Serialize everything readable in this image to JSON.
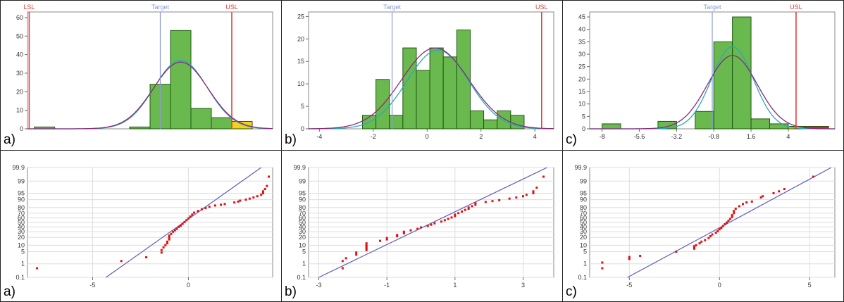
{
  "colors": {
    "bar_fill": "#6ab94e",
    "bar_stroke": "#1e5a12",
    "warn_fill": "#f2d21a",
    "out_fill": "#d92020",
    "spec_line": "#e0403a",
    "target_line": "#8a9ad2",
    "curve_a": "#2aa9b8",
    "curve_b": "#8a2a7a",
    "fit_line": "#5b5bbf",
    "point": "#e01010",
    "grid": "#dddddd"
  },
  "chart_data": [
    {
      "type": "bar",
      "panel_label": "a)",
      "xlim": [
        -8.6,
        5.8
      ],
      "ylim": [
        0,
        63
      ],
      "yticks": [
        0,
        10,
        20,
        30,
        40,
        50,
        60
      ],
      "xticks": [],
      "bins": [
        {
          "x0": -8.2,
          "x1": -7.0,
          "value": 1,
          "color": "green"
        },
        {
          "x0": -2.6,
          "x1": -1.4,
          "value": 1,
          "color": "green"
        },
        {
          "x0": -1.4,
          "x1": -0.2,
          "value": 24,
          "color": "green"
        },
        {
          "x0": -0.2,
          "x1": 1.0,
          "value": 53,
          "color": "green"
        },
        {
          "x0": 1.0,
          "x1": 2.2,
          "value": 11,
          "color": "green"
        },
        {
          "x0": 2.2,
          "x1": 3.4,
          "value": 6,
          "color": "green"
        },
        {
          "x0": 3.4,
          "x1": 4.6,
          "value": 4,
          "color": "yellow"
        }
      ],
      "curves": [
        {
          "mean": 0.4,
          "sd": 1.55,
          "peak": 37
        },
        {
          "mean": 0.4,
          "sd": 1.6,
          "peak": 36
        }
      ],
      "spec_lines": [
        {
          "label": "LSL",
          "x": -8.5,
          "kind": "spec"
        },
        {
          "label": "Target",
          "x": -0.8,
          "kind": "target"
        },
        {
          "label": "USL",
          "x": 3.4,
          "kind": "spec"
        }
      ]
    },
    {
      "type": "bar",
      "panel_label": "b)",
      "xlim": [
        -4.4,
        4.7
      ],
      "ylim": [
        0,
        26
      ],
      "yticks": [
        0,
        5,
        10,
        15,
        20,
        25
      ],
      "xticks": [
        -4,
        -2,
        0,
        2,
        4
      ],
      "bins": [
        {
          "x0": -2.4,
          "x1": -1.9,
          "value": 3,
          "color": "green"
        },
        {
          "x0": -1.9,
          "x1": -1.4,
          "value": 11,
          "color": "green"
        },
        {
          "x0": -1.4,
          "x1": -0.9,
          "value": 3,
          "color": "green"
        },
        {
          "x0": -0.9,
          "x1": -0.4,
          "value": 18,
          "color": "green"
        },
        {
          "x0": -0.4,
          "x1": 0.1,
          "value": 13,
          "color": "green"
        },
        {
          "x0": 0.1,
          "x1": 0.6,
          "value": 18,
          "color": "green"
        },
        {
          "x0": 0.6,
          "x1": 1.1,
          "value": 16,
          "color": "green"
        },
        {
          "x0": 1.1,
          "x1": 1.6,
          "value": 22,
          "color": "green"
        },
        {
          "x0": 1.6,
          "x1": 2.1,
          "value": 4,
          "color": "green"
        },
        {
          "x0": 2.1,
          "x1": 2.6,
          "value": 2,
          "color": "green"
        },
        {
          "x0": 2.6,
          "x1": 3.1,
          "value": 4,
          "color": "green"
        },
        {
          "x0": 3.1,
          "x1": 3.6,
          "value": 3,
          "color": "green"
        }
      ],
      "curves": [
        {
          "mean": 0.4,
          "sd": 1.15,
          "peak": 17.5
        },
        {
          "mean": 0.3,
          "sd": 1.25,
          "peak": 18
        }
      ],
      "spec_lines": [
        {
          "label": "Target",
          "x": -1.3,
          "kind": "target"
        },
        {
          "label": "USL",
          "x": 4.25,
          "kind": "spec"
        }
      ]
    },
    {
      "type": "bar",
      "panel_label": "c)",
      "xlim": [
        -8.8,
        7.0
      ],
      "ylim": [
        0,
        47
      ],
      "yticks": [
        0,
        5,
        10,
        15,
        20,
        25,
        30,
        35,
        40,
        45
      ],
      "xticks": [
        -8,
        -5.6,
        -3.2,
        -0.8,
        1.6,
        4
      ],
      "bins": [
        {
          "x0": -8.0,
          "x1": -6.8,
          "value": 2,
          "color": "green"
        },
        {
          "x0": -4.4,
          "x1": -3.2,
          "value": 3,
          "color": "green"
        },
        {
          "x0": -3.2,
          "x1": -2.0,
          "value": 0,
          "color": "green"
        },
        {
          "x0": -2.0,
          "x1": -0.8,
          "value": 7,
          "color": "green"
        },
        {
          "x0": -0.8,
          "x1": 0.4,
          "value": 35,
          "color": "green"
        },
        {
          "x0": 0.4,
          "x1": 1.6,
          "value": 45,
          "color": "green"
        },
        {
          "x0": 1.6,
          "x1": 2.8,
          "value": 4,
          "color": "green"
        },
        {
          "x0": 2.8,
          "x1": 4.0,
          "value": 2,
          "color": "green"
        },
        {
          "x0": 4.0,
          "x1": 5.0,
          "value": 1,
          "color": "yellow"
        },
        {
          "x0": 5.0,
          "x1": 6.6,
          "value": 1,
          "color": "red"
        }
      ],
      "curves": [
        {
          "mean": 0.4,
          "sd": 1.35,
          "peak": 33
        },
        {
          "mean": 0.4,
          "sd": 1.6,
          "peak": 29.5
        }
      ],
      "spec_lines": [
        {
          "label": "Target",
          "x": -0.9,
          "kind": "target"
        },
        {
          "label": "USL",
          "x": 4.5,
          "kind": "spec"
        }
      ]
    },
    {
      "type": "scatter",
      "panel_label": "a)",
      "xlim": [
        -8.4,
        4.4
      ],
      "xticks": [
        -5,
        0
      ],
      "yticks": [
        0.1,
        1,
        5,
        10,
        20,
        30,
        40,
        50,
        60,
        70,
        80,
        90,
        95,
        99,
        99.9
      ],
      "ylabels": [
        "0.1",
        "1",
        "5",
        "10",
        "20",
        "30",
        "40",
        "50",
        "60",
        "70",
        "80",
        "90",
        "95",
        "99",
        "99.9"
      ],
      "fit_line": {
        "x0": -4.3,
        "y0": 0.1,
        "x1": 3.8,
        "y1": 99.9
      },
      "points": [
        {
          "x": -7.9,
          "p": 0.5
        },
        {
          "x": -3.5,
          "p": 1.5
        },
        {
          "x": -2.2,
          "p": 2.5
        },
        {
          "x": -1.4,
          "p": 4.5
        },
        {
          "x": -1.4,
          "p": 6
        },
        {
          "x": -1.3,
          "p": 8
        },
        {
          "x": -1.2,
          "p": 10
        },
        {
          "x": -1.1,
          "p": 12
        },
        {
          "x": -1.1,
          "p": 14
        },
        {
          "x": -1.0,
          "p": 17
        },
        {
          "x": -1.0,
          "p": 20
        },
        {
          "x": -1.0,
          "p": 23
        },
        {
          "x": -0.9,
          "p": 26
        },
        {
          "x": -0.8,
          "p": 30
        },
        {
          "x": -0.7,
          "p": 33
        },
        {
          "x": -0.6,
          "p": 36
        },
        {
          "x": -0.5,
          "p": 40
        },
        {
          "x": -0.4,
          "p": 43
        },
        {
          "x": -0.3,
          "p": 47
        },
        {
          "x": -0.2,
          "p": 51
        },
        {
          "x": -0.1,
          "p": 55
        },
        {
          "x": 0.0,
          "p": 59
        },
        {
          "x": 0.1,
          "p": 63
        },
        {
          "x": 0.2,
          "p": 67
        },
        {
          "x": 0.3,
          "p": 71
        },
        {
          "x": 0.5,
          "p": 74
        },
        {
          "x": 0.7,
          "p": 77
        },
        {
          "x": 0.9,
          "p": 79
        },
        {
          "x": 1.1,
          "p": 81
        },
        {
          "x": 1.4,
          "p": 83
        },
        {
          "x": 1.7,
          "p": 84
        },
        {
          "x": 1.9,
          "p": 85
        },
        {
          "x": 2.4,
          "p": 87
        },
        {
          "x": 2.6,
          "p": 88
        },
        {
          "x": 2.7,
          "p": 89
        },
        {
          "x": 3.0,
          "p": 90
        },
        {
          "x": 3.2,
          "p": 91
        },
        {
          "x": 3.4,
          "p": 92
        },
        {
          "x": 3.6,
          "p": 93
        },
        {
          "x": 3.8,
          "p": 94
        },
        {
          "x": 3.9,
          "p": 95
        },
        {
          "x": 3.9,
          "p": 96
        },
        {
          "x": 4.0,
          "p": 97
        },
        {
          "x": 4.1,
          "p": 98
        },
        {
          "x": 4.2,
          "p": 99.5
        }
      ]
    },
    {
      "type": "scatter",
      "panel_label": "b)",
      "xlim": [
        -3.3,
        3.9
      ],
      "xticks": [
        -3,
        -1,
        1,
        3
      ],
      "yticks": [
        0.1,
        1,
        5,
        10,
        20,
        30,
        40,
        50,
        60,
        70,
        80,
        90,
        95,
        99,
        99.9
      ],
      "ylabels": [
        "0.1",
        "1",
        "5",
        "10",
        "20",
        "30",
        "40",
        "50",
        "60",
        "70",
        "80",
        "90",
        "95",
        "99",
        "99.9"
      ],
      "fit_line": {
        "x0": -3.0,
        "y0": 0.1,
        "x1": 3.7,
        "y1": 99.9
      },
      "points": [
        {
          "x": -2.3,
          "p": 0.5
        },
        {
          "x": -2.3,
          "p": 1.5
        },
        {
          "x": -2.2,
          "p": 2.2
        },
        {
          "x": -1.9,
          "p": 3.5
        },
        {
          "x": -1.9,
          "p": 4.5
        },
        {
          "x": -1.6,
          "p": 6
        },
        {
          "x": -1.6,
          "p": 7
        },
        {
          "x": -1.6,
          "p": 8
        },
        {
          "x": -1.6,
          "p": 9
        },
        {
          "x": -1.6,
          "p": 10
        },
        {
          "x": -1.6,
          "p": 12
        },
        {
          "x": -1.2,
          "p": 15
        },
        {
          "x": -1.0,
          "p": 17
        },
        {
          "x": -1.0,
          "p": 19
        },
        {
          "x": -0.7,
          "p": 22
        },
        {
          "x": -0.7,
          "p": 24
        },
        {
          "x": -0.5,
          "p": 27
        },
        {
          "x": -0.5,
          "p": 30
        },
        {
          "x": -0.3,
          "p": 33
        },
        {
          "x": -0.1,
          "p": 36
        },
        {
          "x": 0.0,
          "p": 39
        },
        {
          "x": 0.2,
          "p": 42
        },
        {
          "x": 0.3,
          "p": 45
        },
        {
          "x": 0.4,
          "p": 48
        },
        {
          "x": 0.6,
          "p": 52
        },
        {
          "x": 0.7,
          "p": 55
        },
        {
          "x": 0.8,
          "p": 58
        },
        {
          "x": 0.9,
          "p": 61
        },
        {
          "x": 1.0,
          "p": 64
        },
        {
          "x": 1.0,
          "p": 67
        },
        {
          "x": 1.1,
          "p": 70
        },
        {
          "x": 1.2,
          "p": 73
        },
        {
          "x": 1.3,
          "p": 76
        },
        {
          "x": 1.4,
          "p": 78
        },
        {
          "x": 1.4,
          "p": 80
        },
        {
          "x": 1.5,
          "p": 82
        },
        {
          "x": 1.6,
          "p": 84
        },
        {
          "x": 1.6,
          "p": 86
        },
        {
          "x": 1.9,
          "p": 87.5
        },
        {
          "x": 2.1,
          "p": 88.5
        },
        {
          "x": 2.3,
          "p": 89.5
        },
        {
          "x": 2.6,
          "p": 91
        },
        {
          "x": 2.8,
          "p": 92
        },
        {
          "x": 3.0,
          "p": 93
        },
        {
          "x": 3.1,
          "p": 94
        },
        {
          "x": 3.3,
          "p": 95
        },
        {
          "x": 3.3,
          "p": 96
        },
        {
          "x": 3.4,
          "p": 97.5
        },
        {
          "x": 3.6,
          "p": 99.5
        }
      ]
    },
    {
      "type": "scatter",
      "panel_label": "c)",
      "xlim": [
        -7.2,
        6.4
      ],
      "xticks": [
        -5,
        0,
        5
      ],
      "yticks": [
        0.1,
        1,
        5,
        10,
        20,
        30,
        40,
        50,
        60,
        70,
        80,
        90,
        95,
        99,
        99.9
      ],
      "ylabels": [
        "0.1",
        "1",
        "5",
        "10",
        "20",
        "30",
        "40",
        "50",
        "60",
        "70",
        "80",
        "90",
        "95",
        "99",
        "99.9"
      ],
      "fit_line": {
        "x0": -5.1,
        "y0": 0.1,
        "x1": 6.2,
        "y1": 99.9
      },
      "points": [
        {
          "x": -6.5,
          "p": 0.5
        },
        {
          "x": -6.5,
          "p": 1.2
        },
        {
          "x": -5.0,
          "p": 2
        },
        {
          "x": -5.0,
          "p": 2.6
        },
        {
          "x": -4.4,
          "p": 3
        },
        {
          "x": -2.4,
          "p": 5
        },
        {
          "x": -1.4,
          "p": 7
        },
        {
          "x": -1.4,
          "p": 8
        },
        {
          "x": -1.4,
          "p": 9
        },
        {
          "x": -1.3,
          "p": 10
        },
        {
          "x": -1.1,
          "p": 12
        },
        {
          "x": -1.0,
          "p": 14
        },
        {
          "x": -0.8,
          "p": 16
        },
        {
          "x": -0.6,
          "p": 19
        },
        {
          "x": -0.5,
          "p": 22
        },
        {
          "x": -0.4,
          "p": 25
        },
        {
          "x": -0.2,
          "p": 28
        },
        {
          "x": -0.1,
          "p": 31
        },
        {
          "x": 0.0,
          "p": 35
        },
        {
          "x": 0.1,
          "p": 38
        },
        {
          "x": 0.2,
          "p": 42
        },
        {
          "x": 0.3,
          "p": 46
        },
        {
          "x": 0.4,
          "p": 50
        },
        {
          "x": 0.5,
          "p": 54
        },
        {
          "x": 0.6,
          "p": 58
        },
        {
          "x": 0.7,
          "p": 62
        },
        {
          "x": 0.7,
          "p": 66
        },
        {
          "x": 0.8,
          "p": 70
        },
        {
          "x": 0.8,
          "p": 74
        },
        {
          "x": 0.9,
          "p": 78
        },
        {
          "x": 1.1,
          "p": 82
        },
        {
          "x": 1.3,
          "p": 85
        },
        {
          "x": 1.5,
          "p": 87
        },
        {
          "x": 1.8,
          "p": 88
        },
        {
          "x": 2.3,
          "p": 92
        },
        {
          "x": 2.4,
          "p": 93
        },
        {
          "x": 3.0,
          "p": 95
        },
        {
          "x": 3.3,
          "p": 96
        },
        {
          "x": 3.6,
          "p": 97
        },
        {
          "x": 5.2,
          "p": 99.5
        }
      ]
    }
  ]
}
